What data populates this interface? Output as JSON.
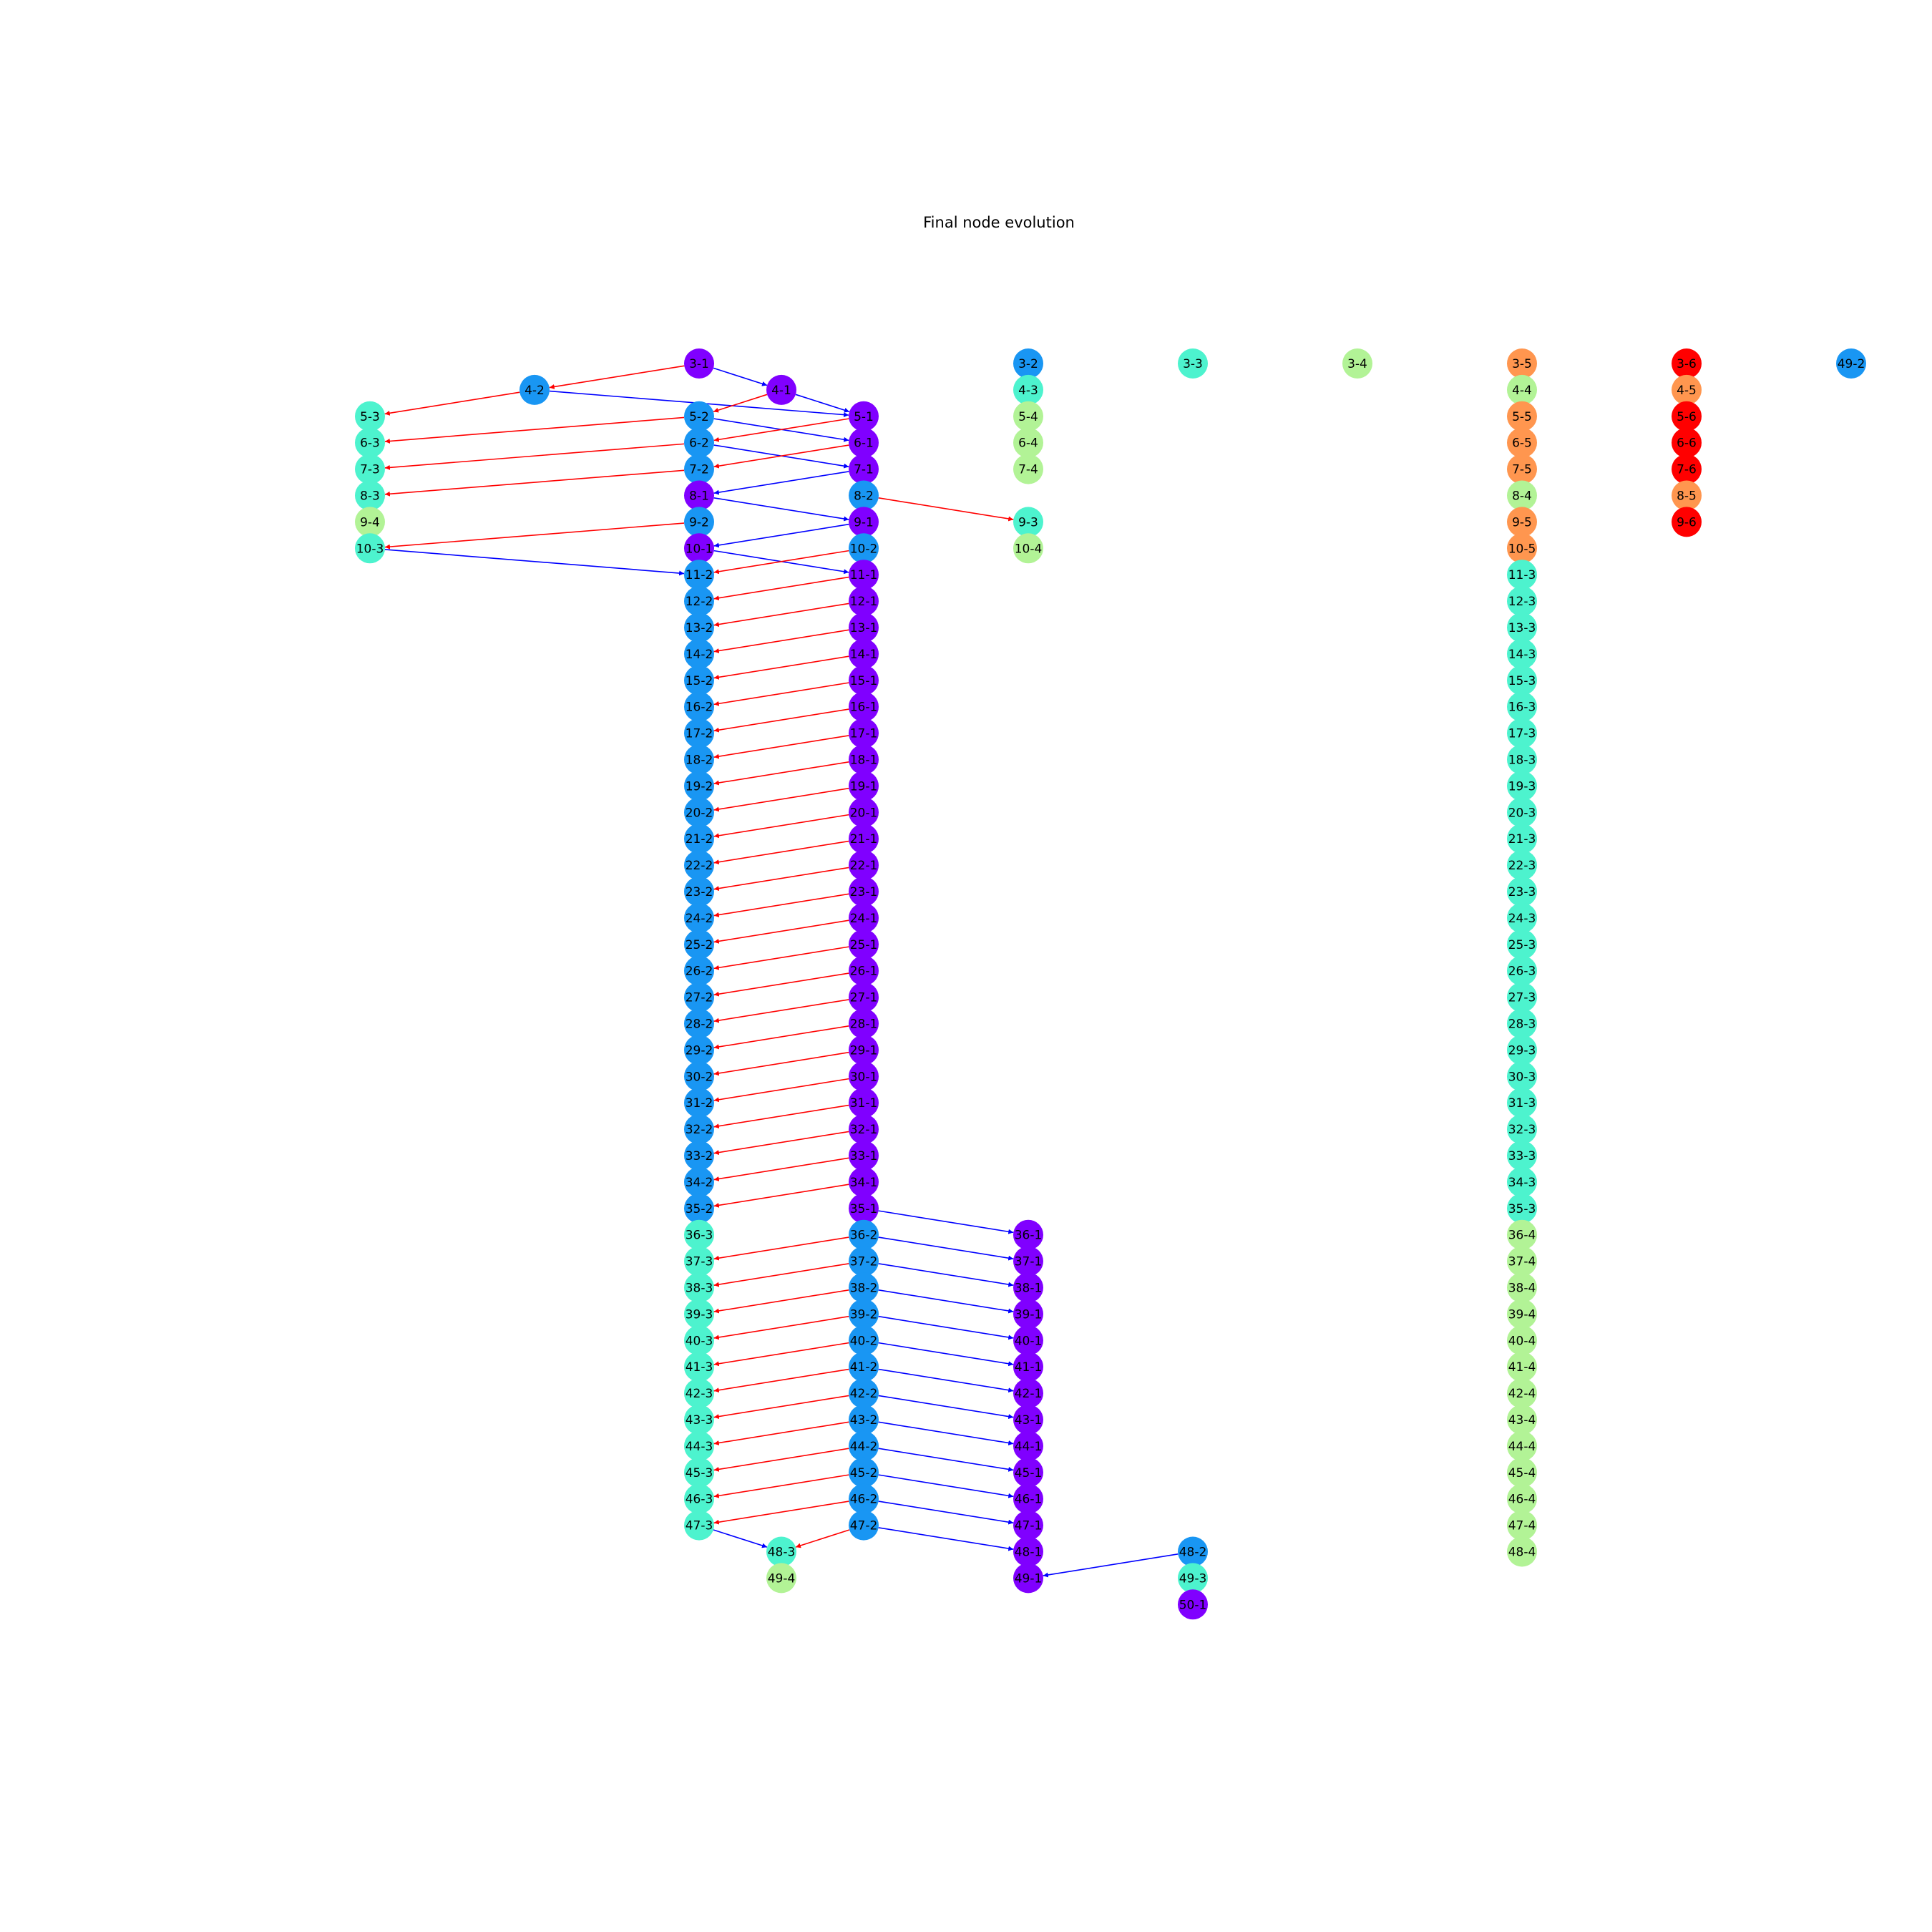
{
  "title": "Final node evolution",
  "colors": {
    "1": "#8000ff",
    "2": "#1996f3",
    "3": "#4df3ce",
    "4": "#b2f396",
    "5": "#ff964f",
    "6": "#ff0000",
    "red_edge": "#ff0000",
    "blue_edge": "#0000ff"
  },
  "nodes": [
    {
      "id": "3-1",
      "col": 3,
      "row": 3
    },
    {
      "id": "3-2",
      "col": 5,
      "row": 3
    },
    {
      "id": "3-3",
      "col": 6,
      "row": 3
    },
    {
      "id": "3-4",
      "col": 7,
      "row": 3
    },
    {
      "id": "3-5",
      "col": 8,
      "row": 3
    },
    {
      "id": "3-6",
      "col": 9,
      "row": 3
    },
    {
      "id": "49-2",
      "col": 10,
      "row": 3
    },
    {
      "id": "4-2",
      "col": 2,
      "row": 4
    },
    {
      "id": "4-1",
      "col": 3.5,
      "row": 4
    },
    {
      "id": "4-3",
      "col": 5,
      "row": 4
    },
    {
      "id": "4-4",
      "col": 8,
      "row": 4
    },
    {
      "id": "4-5",
      "col": 9,
      "row": 4
    },
    {
      "id": "5-3",
      "col": 1,
      "row": 5
    },
    {
      "id": "5-2",
      "col": 3,
      "row": 5
    },
    {
      "id": "5-1",
      "col": 4,
      "row": 5
    },
    {
      "id": "5-4",
      "col": 5,
      "row": 5
    },
    {
      "id": "5-5",
      "col": 8,
      "row": 5
    },
    {
      "id": "5-6",
      "col": 9,
      "row": 5
    },
    {
      "id": "6-3",
      "col": 1,
      "row": 6
    },
    {
      "id": "6-2",
      "col": 3,
      "row": 6
    },
    {
      "id": "6-1",
      "col": 4,
      "row": 6
    },
    {
      "id": "6-4",
      "col": 5,
      "row": 6
    },
    {
      "id": "6-5",
      "col": 8,
      "row": 6
    },
    {
      "id": "6-6",
      "col": 9,
      "row": 6
    },
    {
      "id": "7-3",
      "col": 1,
      "row": 7
    },
    {
      "id": "7-2",
      "col": 3,
      "row": 7
    },
    {
      "id": "7-1",
      "col": 4,
      "row": 7
    },
    {
      "id": "7-4",
      "col": 5,
      "row": 7
    },
    {
      "id": "7-5",
      "col": 8,
      "row": 7
    },
    {
      "id": "7-6",
      "col": 9,
      "row": 7
    },
    {
      "id": "8-3",
      "col": 1,
      "row": 8
    },
    {
      "id": "8-1",
      "col": 3,
      "row": 8
    },
    {
      "id": "8-2",
      "col": 4,
      "row": 8
    },
    {
      "id": "8-4",
      "col": 8,
      "row": 8
    },
    {
      "id": "8-5",
      "col": 9,
      "row": 8
    },
    {
      "id": "9-4",
      "col": 1,
      "row": 9
    },
    {
      "id": "9-2",
      "col": 3,
      "row": 9
    },
    {
      "id": "9-1",
      "col": 4,
      "row": 9
    },
    {
      "id": "9-3",
      "col": 5,
      "row": 9
    },
    {
      "id": "9-5",
      "col": 8,
      "row": 9
    },
    {
      "id": "9-6",
      "col": 9,
      "row": 9
    },
    {
      "id": "10-3",
      "col": 1,
      "row": 10
    },
    {
      "id": "10-1",
      "col": 3,
      "row": 10
    },
    {
      "id": "10-2",
      "col": 4,
      "row": 10
    },
    {
      "id": "10-4",
      "col": 5,
      "row": 10
    },
    {
      "id": "10-5",
      "col": 8,
      "row": 10
    },
    {
      "id": "11-2",
      "col": 3,
      "row": 11
    },
    {
      "id": "11-1",
      "col": 4,
      "row": 11
    },
    {
      "id": "11-3",
      "col": 8,
      "row": 11
    },
    {
      "id": "12-2",
      "col": 3,
      "row": 12
    },
    {
      "id": "12-1",
      "col": 4,
      "row": 12
    },
    {
      "id": "12-3",
      "col": 8,
      "row": 12
    },
    {
      "id": "13-2",
      "col": 3,
      "row": 13
    },
    {
      "id": "13-1",
      "col": 4,
      "row": 13
    },
    {
      "id": "13-3",
      "col": 8,
      "row": 13
    },
    {
      "id": "14-2",
      "col": 3,
      "row": 14
    },
    {
      "id": "14-1",
      "col": 4,
      "row": 14
    },
    {
      "id": "14-3",
      "col": 8,
      "row": 14
    },
    {
      "id": "15-2",
      "col": 3,
      "row": 15
    },
    {
      "id": "15-1",
      "col": 4,
      "row": 15
    },
    {
      "id": "15-3",
      "col": 8,
      "row": 15
    },
    {
      "id": "16-2",
      "col": 3,
      "row": 16
    },
    {
      "id": "16-1",
      "col": 4,
      "row": 16
    },
    {
      "id": "16-3",
      "col": 8,
      "row": 16
    },
    {
      "id": "17-2",
      "col": 3,
      "row": 17
    },
    {
      "id": "17-1",
      "col": 4,
      "row": 17
    },
    {
      "id": "17-3",
      "col": 8,
      "row": 17
    },
    {
      "id": "18-2",
      "col": 3,
      "row": 18
    },
    {
      "id": "18-1",
      "col": 4,
      "row": 18
    },
    {
      "id": "18-3",
      "col": 8,
      "row": 18
    },
    {
      "id": "19-2",
      "col": 3,
      "row": 19
    },
    {
      "id": "19-1",
      "col": 4,
      "row": 19
    },
    {
      "id": "19-3",
      "col": 8,
      "row": 19
    },
    {
      "id": "20-2",
      "col": 3,
      "row": 20
    },
    {
      "id": "20-1",
      "col": 4,
      "row": 20
    },
    {
      "id": "20-3",
      "col": 8,
      "row": 20
    },
    {
      "id": "21-2",
      "col": 3,
      "row": 21
    },
    {
      "id": "21-1",
      "col": 4,
      "row": 21
    },
    {
      "id": "21-3",
      "col": 8,
      "row": 21
    },
    {
      "id": "22-2",
      "col": 3,
      "row": 22
    },
    {
      "id": "22-1",
      "col": 4,
      "row": 22
    },
    {
      "id": "22-3",
      "col": 8,
      "row": 22
    },
    {
      "id": "23-2",
      "col": 3,
      "row": 23
    },
    {
      "id": "23-1",
      "col": 4,
      "row": 23
    },
    {
      "id": "23-3",
      "col": 8,
      "row": 23
    },
    {
      "id": "24-2",
      "col": 3,
      "row": 24
    },
    {
      "id": "24-1",
      "col": 4,
      "row": 24
    },
    {
      "id": "24-3",
      "col": 8,
      "row": 24
    },
    {
      "id": "25-2",
      "col": 3,
      "row": 25
    },
    {
      "id": "25-1",
      "col": 4,
      "row": 25
    },
    {
      "id": "25-3",
      "col": 8,
      "row": 25
    },
    {
      "id": "26-2",
      "col": 3,
      "row": 26
    },
    {
      "id": "26-1",
      "col": 4,
      "row": 26
    },
    {
      "id": "26-3",
      "col": 8,
      "row": 26
    },
    {
      "id": "27-2",
      "col": 3,
      "row": 27
    },
    {
      "id": "27-1",
      "col": 4,
      "row": 27
    },
    {
      "id": "27-3",
      "col": 8,
      "row": 27
    },
    {
      "id": "28-2",
      "col": 3,
      "row": 28
    },
    {
      "id": "28-1",
      "col": 4,
      "row": 28
    },
    {
      "id": "28-3",
      "col": 8,
      "row": 28
    },
    {
      "id": "29-2",
      "col": 3,
      "row": 29
    },
    {
      "id": "29-1",
      "col": 4,
      "row": 29
    },
    {
      "id": "29-3",
      "col": 8,
      "row": 29
    },
    {
      "id": "30-2",
      "col": 3,
      "row": 30
    },
    {
      "id": "30-1",
      "col": 4,
      "row": 30
    },
    {
      "id": "30-3",
      "col": 8,
      "row": 30
    },
    {
      "id": "31-2",
      "col": 3,
      "row": 31
    },
    {
      "id": "31-1",
      "col": 4,
      "row": 31
    },
    {
      "id": "31-3",
      "col": 8,
      "row": 31
    },
    {
      "id": "32-2",
      "col": 3,
      "row": 32
    },
    {
      "id": "32-1",
      "col": 4,
      "row": 32
    },
    {
      "id": "32-3",
      "col": 8,
      "row": 32
    },
    {
      "id": "33-2",
      "col": 3,
      "row": 33
    },
    {
      "id": "33-1",
      "col": 4,
      "row": 33
    },
    {
      "id": "33-3",
      "col": 8,
      "row": 33
    },
    {
      "id": "34-2",
      "col": 3,
      "row": 34
    },
    {
      "id": "34-1",
      "col": 4,
      "row": 34
    },
    {
      "id": "34-3",
      "col": 8,
      "row": 34
    },
    {
      "id": "35-2",
      "col": 3,
      "row": 35
    },
    {
      "id": "35-1",
      "col": 4,
      "row": 35
    },
    {
      "id": "35-3",
      "col": 8,
      "row": 35
    },
    {
      "id": "36-3",
      "col": 3,
      "row": 36
    },
    {
      "id": "36-2",
      "col": 4,
      "row": 36
    },
    {
      "id": "36-1",
      "col": 5,
      "row": 36
    },
    {
      "id": "36-4",
      "col": 8,
      "row": 36
    },
    {
      "id": "37-3",
      "col": 3,
      "row": 37
    },
    {
      "id": "37-2",
      "col": 4,
      "row": 37
    },
    {
      "id": "37-1",
      "col": 5,
      "row": 37
    },
    {
      "id": "37-4",
      "col": 8,
      "row": 37
    },
    {
      "id": "38-3",
      "col": 3,
      "row": 38
    },
    {
      "id": "38-2",
      "col": 4,
      "row": 38
    },
    {
      "id": "38-1",
      "col": 5,
      "row": 38
    },
    {
      "id": "38-4",
      "col": 8,
      "row": 38
    },
    {
      "id": "39-3",
      "col": 3,
      "row": 39
    },
    {
      "id": "39-2",
      "col": 4,
      "row": 39
    },
    {
      "id": "39-1",
      "col": 5,
      "row": 39
    },
    {
      "id": "39-4",
      "col": 8,
      "row": 39
    },
    {
      "id": "40-3",
      "col": 3,
      "row": 40
    },
    {
      "id": "40-2",
      "col": 4,
      "row": 40
    },
    {
      "id": "40-1",
      "col": 5,
      "row": 40
    },
    {
      "id": "40-4",
      "col": 8,
      "row": 40
    },
    {
      "id": "41-3",
      "col": 3,
      "row": 41
    },
    {
      "id": "41-2",
      "col": 4,
      "row": 41
    },
    {
      "id": "41-1",
      "col": 5,
      "row": 41
    },
    {
      "id": "41-4",
      "col": 8,
      "row": 41
    },
    {
      "id": "42-3",
      "col": 3,
      "row": 42
    },
    {
      "id": "42-2",
      "col": 4,
      "row": 42
    },
    {
      "id": "42-1",
      "col": 5,
      "row": 42
    },
    {
      "id": "42-4",
      "col": 8,
      "row": 42
    },
    {
      "id": "43-3",
      "col": 3,
      "row": 43
    },
    {
      "id": "43-2",
      "col": 4,
      "row": 43
    },
    {
      "id": "43-1",
      "col": 5,
      "row": 43
    },
    {
      "id": "43-4",
      "col": 8,
      "row": 43
    },
    {
      "id": "44-3",
      "col": 3,
      "row": 44
    },
    {
      "id": "44-2",
      "col": 4,
      "row": 44
    },
    {
      "id": "44-1",
      "col": 5,
      "row": 44
    },
    {
      "id": "44-4",
      "col": 8,
      "row": 44
    },
    {
      "id": "45-3",
      "col": 3,
      "row": 45
    },
    {
      "id": "45-2",
      "col": 4,
      "row": 45
    },
    {
      "id": "45-1",
      "col": 5,
      "row": 45
    },
    {
      "id": "45-4",
      "col": 8,
      "row": 45
    },
    {
      "id": "46-3",
      "col": 3,
      "row": 46
    },
    {
      "id": "46-2",
      "col": 4,
      "row": 46
    },
    {
      "id": "46-1",
      "col": 5,
      "row": 46
    },
    {
      "id": "46-4",
      "col": 8,
      "row": 46
    },
    {
      "id": "47-3",
      "col": 3,
      "row": 47
    },
    {
      "id": "47-2",
      "col": 4,
      "row": 47
    },
    {
      "id": "47-1",
      "col": 5,
      "row": 47
    },
    {
      "id": "47-4",
      "col": 8,
      "row": 47
    },
    {
      "id": "48-3",
      "col": 3.5,
      "row": 48
    },
    {
      "id": "48-1",
      "col": 5,
      "row": 48
    },
    {
      "id": "48-2",
      "col": 6,
      "row": 48
    },
    {
      "id": "48-4",
      "col": 8,
      "row": 48
    },
    {
      "id": "49-4",
      "col": 3.5,
      "row": 49
    },
    {
      "id": "49-1",
      "col": 5,
      "row": 49
    },
    {
      "id": "49-3",
      "col": 6,
      "row": 49
    },
    {
      "id": "50-1",
      "col": 6,
      "row": 50
    }
  ],
  "edges": [
    {
      "from": "3-1",
      "to": "4-2",
      "color": "red"
    },
    {
      "from": "3-1",
      "to": "4-1",
      "color": "blue"
    },
    {
      "from": "4-2",
      "to": "5-3",
      "color": "red"
    },
    {
      "from": "4-2",
      "to": "5-1",
      "color": "blue"
    },
    {
      "from": "4-1",
      "to": "5-2",
      "color": "red"
    },
    {
      "from": "4-1",
      "to": "5-1",
      "color": "blue"
    },
    {
      "from": "5-2",
      "to": "6-3",
      "color": "red"
    },
    {
      "from": "5-2",
      "to": "6-1",
      "color": "blue"
    },
    {
      "from": "5-1",
      "to": "6-2",
      "color": "red"
    },
    {
      "from": "5-1",
      "to": "6-1",
      "color": "blue"
    },
    {
      "from": "6-2",
      "to": "7-3",
      "color": "red"
    },
    {
      "from": "6-2",
      "to": "7-1",
      "color": "blue"
    },
    {
      "from": "6-1",
      "to": "7-2",
      "color": "red"
    },
    {
      "from": "6-1",
      "to": "7-1",
      "color": "blue"
    },
    {
      "from": "7-2",
      "to": "8-3",
      "color": "red"
    },
    {
      "from": "7-1",
      "to": "8-1",
      "color": "blue"
    },
    {
      "from": "8-1",
      "to": "9-1",
      "color": "blue"
    },
    {
      "from": "8-2",
      "to": "9-3",
      "color": "red"
    },
    {
      "from": "9-2",
      "to": "10-3",
      "color": "red"
    },
    {
      "from": "9-1",
      "to": "10-1",
      "color": "blue"
    },
    {
      "from": "10-3",
      "to": "11-2",
      "color": "blue"
    },
    {
      "from": "10-1",
      "to": "11-1",
      "color": "blue"
    },
    {
      "from": "10-2",
      "to": "11-2",
      "color": "red"
    },
    {
      "from": "11-1",
      "to": "12-2",
      "color": "red"
    },
    {
      "from": "12-1",
      "to": "13-2",
      "color": "red"
    },
    {
      "from": "13-1",
      "to": "14-2",
      "color": "red"
    },
    {
      "from": "14-1",
      "to": "15-2",
      "color": "red"
    },
    {
      "from": "15-1",
      "to": "16-2",
      "color": "red"
    },
    {
      "from": "16-1",
      "to": "17-2",
      "color": "red"
    },
    {
      "from": "17-1",
      "to": "18-2",
      "color": "red"
    },
    {
      "from": "18-1",
      "to": "19-2",
      "color": "red"
    },
    {
      "from": "19-1",
      "to": "20-2",
      "color": "red"
    },
    {
      "from": "20-1",
      "to": "21-2",
      "color": "red"
    },
    {
      "from": "21-1",
      "to": "22-2",
      "color": "red"
    },
    {
      "from": "22-1",
      "to": "23-2",
      "color": "red"
    },
    {
      "from": "23-1",
      "to": "24-2",
      "color": "red"
    },
    {
      "from": "24-1",
      "to": "25-2",
      "color": "red"
    },
    {
      "from": "25-1",
      "to": "26-2",
      "color": "red"
    },
    {
      "from": "26-1",
      "to": "27-2",
      "color": "red"
    },
    {
      "from": "27-1",
      "to": "28-2",
      "color": "red"
    },
    {
      "from": "28-1",
      "to": "29-2",
      "color": "red"
    },
    {
      "from": "29-1",
      "to": "30-2",
      "color": "red"
    },
    {
      "from": "30-1",
      "to": "31-2",
      "color": "red"
    },
    {
      "from": "31-1",
      "to": "32-2",
      "color": "red"
    },
    {
      "from": "32-1",
      "to": "33-2",
      "color": "red"
    },
    {
      "from": "33-1",
      "to": "34-2",
      "color": "red"
    },
    {
      "from": "34-1",
      "to": "35-2",
      "color": "red"
    },
    {
      "from": "35-1",
      "to": "36-1",
      "color": "blue"
    },
    {
      "from": "36-2",
      "to": "37-3",
      "color": "red"
    },
    {
      "from": "36-2",
      "to": "37-1",
      "color": "blue"
    },
    {
      "from": "37-2",
      "to": "38-3",
      "color": "red"
    },
    {
      "from": "37-2",
      "to": "38-1",
      "color": "blue"
    },
    {
      "from": "38-2",
      "to": "39-3",
      "color": "red"
    },
    {
      "from": "38-2",
      "to": "39-1",
      "color": "blue"
    },
    {
      "from": "39-2",
      "to": "40-3",
      "color": "red"
    },
    {
      "from": "39-2",
      "to": "40-1",
      "color": "blue"
    },
    {
      "from": "40-2",
      "to": "41-3",
      "color": "red"
    },
    {
      "from": "40-2",
      "to": "41-1",
      "color": "blue"
    },
    {
      "from": "41-2",
      "to": "42-3",
      "color": "red"
    },
    {
      "from": "41-2",
      "to": "42-1",
      "color": "blue"
    },
    {
      "from": "42-2",
      "to": "43-3",
      "color": "red"
    },
    {
      "from": "42-2",
      "to": "43-1",
      "color": "blue"
    },
    {
      "from": "43-2",
      "to": "44-3",
      "color": "red"
    },
    {
      "from": "43-2",
      "to": "44-1",
      "color": "blue"
    },
    {
      "from": "44-2",
      "to": "45-3",
      "color": "red"
    },
    {
      "from": "44-2",
      "to": "45-1",
      "color": "blue"
    },
    {
      "from": "45-2",
      "to": "46-3",
      "color": "red"
    },
    {
      "from": "45-2",
      "to": "46-1",
      "color": "blue"
    },
    {
      "from": "46-2",
      "to": "47-3",
      "color": "red"
    },
    {
      "from": "46-2",
      "to": "47-1",
      "color": "blue"
    },
    {
      "from": "47-3",
      "to": "48-3",
      "color": "blue"
    },
    {
      "from": "47-2",
      "to": "48-3",
      "color": "red"
    },
    {
      "from": "47-2",
      "to": "48-1",
      "color": "blue"
    },
    {
      "from": "48-2",
      "to": "49-1",
      "color": "blue"
    }
  ]
}
